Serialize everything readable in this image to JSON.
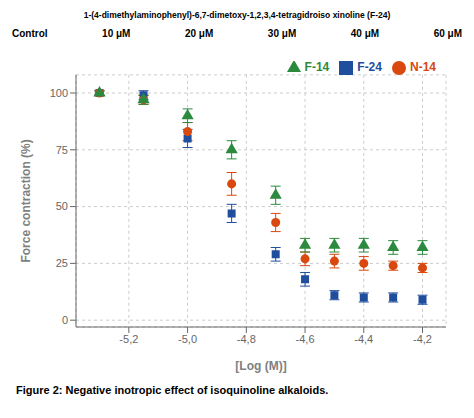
{
  "chart_data": {
    "type": "scatter",
    "title": "Figure 2: Negative inotropic effect of isoquinoline alkaloids.",
    "xlabel": "[Log (M)]",
    "ylabel": "Force contraction (%)",
    "xlim": [
      -5.38,
      -4.12
    ],
    "ylim": [
      -3,
      108
    ],
    "xticks": [
      {
        "value": -5.2,
        "label": "-5,2"
      },
      {
        "value": -5.0,
        "label": "-5,0"
      },
      {
        "value": -4.8,
        "label": "-4,8"
      },
      {
        "value": -4.6,
        "label": "-4,6"
      },
      {
        "value": -4.4,
        "label": "-4,4"
      },
      {
        "value": -4.2,
        "label": "-4,2"
      }
    ],
    "yticks": [
      0,
      25,
      50,
      75,
      100
    ],
    "x": [
      -5.3,
      -5.15,
      -5.0,
      -4.85,
      -4.7,
      -4.6,
      -4.5,
      -4.4,
      -4.3,
      -4.2
    ],
    "series": [
      {
        "name": "F-24",
        "color": "#1f4e9c",
        "marker": "square",
        "values": [
          100,
          99,
          80,
          47,
          29,
          18,
          11,
          10,
          10,
          9
        ],
        "yerr": [
          1,
          2,
          4,
          4,
          3,
          3,
          2,
          2,
          2,
          2
        ]
      },
      {
        "name": "N-14",
        "color": "#d9480f",
        "marker": "circle",
        "values": [
          100,
          97,
          83,
          60,
          43,
          27,
          26,
          25,
          24,
          23
        ],
        "yerr": [
          1,
          2,
          4,
          5,
          4,
          3,
          3,
          3,
          2,
          2
        ]
      },
      {
        "name": "F-14",
        "color": "#2b8a3e",
        "marker": "triangle",
        "values": [
          100,
          97,
          90,
          75,
          55,
          33,
          33,
          33,
          32,
          32
        ],
        "yerr": [
          1,
          2,
          3,
          4,
          4,
          3,
          3,
          3,
          3,
          3
        ]
      }
    ],
    "legend": "upper right",
    "annotations": {
      "strip_label": "1-(4-dimethylaminophenyl)-6,7-dimetoxy-1,2,3,4-tetragidroiso xinoline (F-24)",
      "control_text": "Control",
      "conc_labels": [
        "10 μM",
        "20 μM",
        "30 μM",
        "40 μM",
        "60 μM"
      ]
    }
  }
}
